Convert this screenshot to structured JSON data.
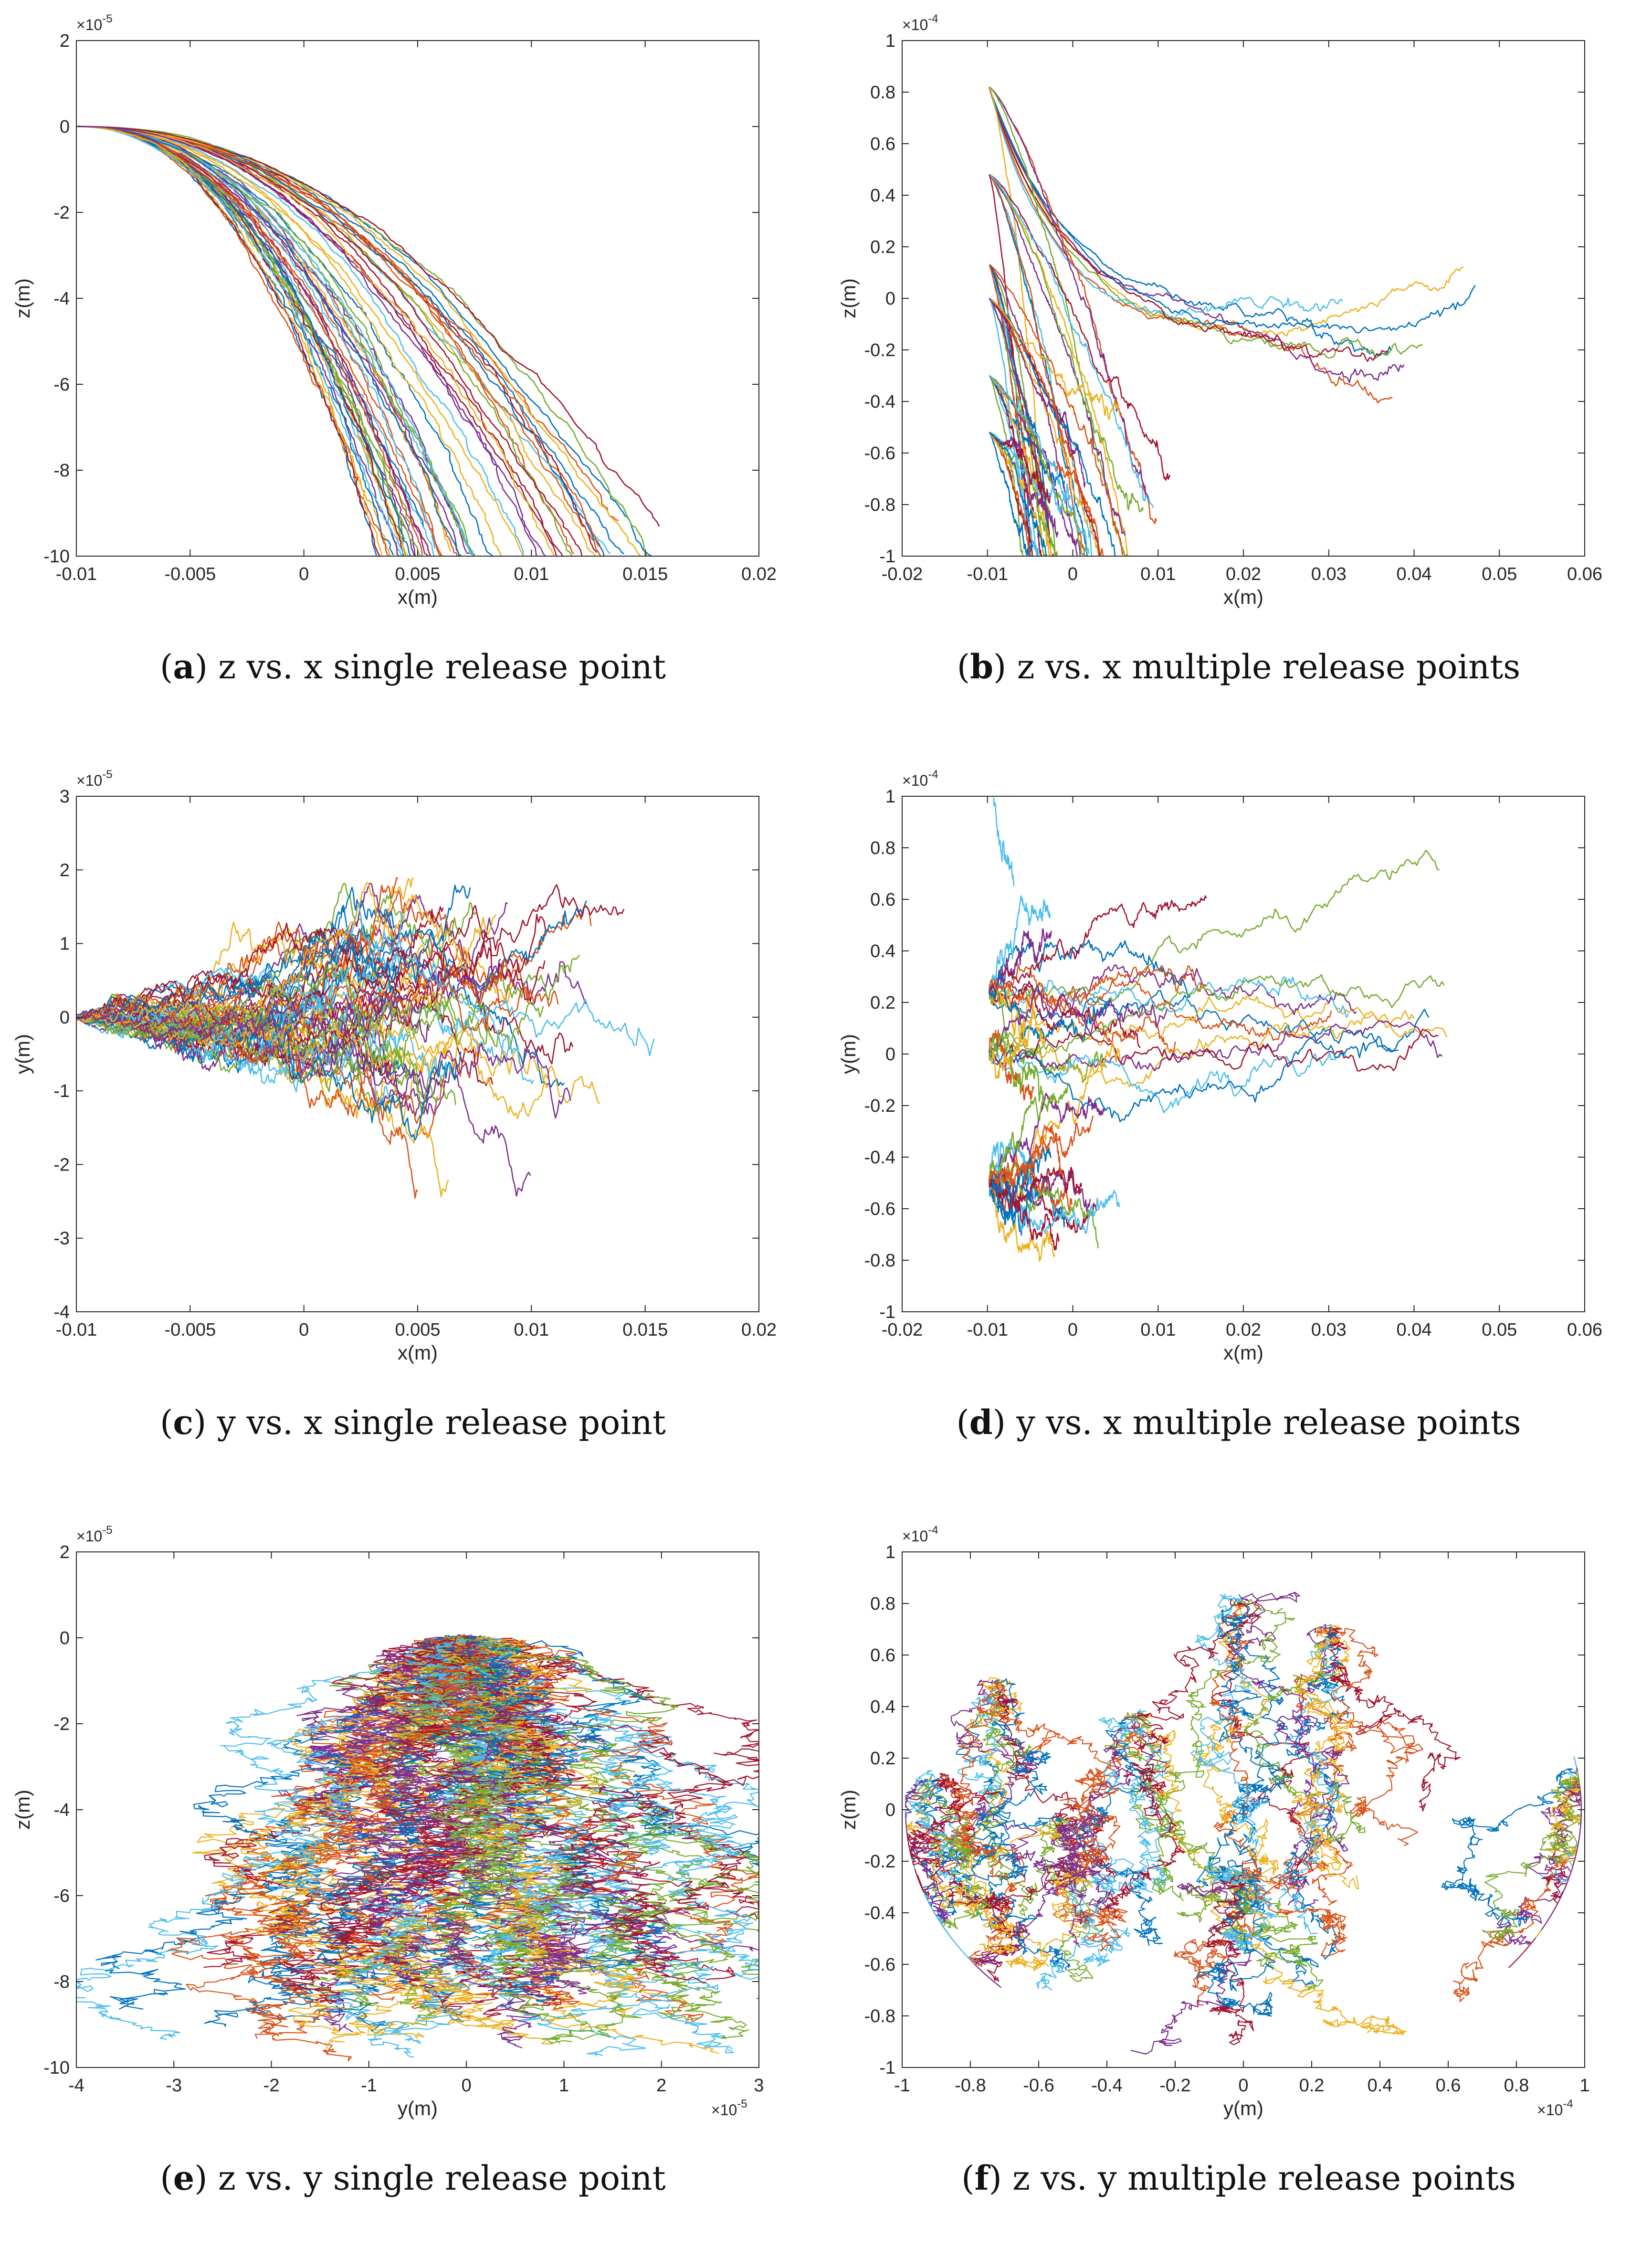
{
  "chart_data": [
    {
      "id": "a",
      "type": "line",
      "caption_label": "a",
      "caption_text": " z vs. x single release point",
      "xlabel": "x(m)",
      "ylabel": "z(m)",
      "xlim": [
        -0.01,
        0.02
      ],
      "ylim": [
        -10,
        2
      ],
      "xticks": [
        -0.01,
        -0.005,
        0,
        0.005,
        0.01,
        0.015,
        0.02
      ],
      "yticks": [
        -10,
        -8,
        -6,
        -4,
        -2,
        0,
        2
      ],
      "xtick_labels": [
        "-0.01",
        "-0.005",
        "0",
        "0.005",
        "0.01",
        "0.015",
        "0.02"
      ],
      "ytick_labels": [
        "-10",
        "-8",
        "-6",
        "-4",
        "-2",
        "0",
        "2"
      ],
      "y_multiplier": "×10",
      "y_multiplier_exp": "-5",
      "x_multiplier": "",
      "x_multiplier_exp": "",
      "mode": "fan_zx",
      "description_series": [
        {
          "name": "single release point trajectories",
          "start": [
            -0.01,
            0
          ],
          "end_x_range": [
            0.004,
            0.0155
          ],
          "end_y": -10
        }
      ]
    },
    {
      "id": "b",
      "type": "line",
      "caption_label": "b",
      "caption_text": " z vs. x multiple release points",
      "xlabel": "x(m)",
      "ylabel": "z(m)",
      "xlim": [
        -0.02,
        0.06
      ],
      "ylim": [
        -1,
        1
      ],
      "xticks": [
        -0.02,
        -0.01,
        0,
        0.01,
        0.02,
        0.03,
        0.04,
        0.05,
        0.06
      ],
      "yticks": [
        -1,
        -0.8,
        -0.6,
        -0.4,
        -0.2,
        0,
        0.2,
        0.4,
        0.6,
        0.8,
        1
      ],
      "xtick_labels": [
        "-0.02",
        "-0.01",
        "0",
        "0.01",
        "0.02",
        "0.03",
        "0.04",
        "0.05",
        "0.06"
      ],
      "ytick_labels": [
        "-1",
        "-0.8",
        "-0.6",
        "-0.4",
        "-0.2",
        "0",
        "0.2",
        "0.4",
        "0.6",
        "0.8",
        "1"
      ],
      "y_multiplier": "×10",
      "y_multiplier_exp": "-4",
      "x_multiplier": "",
      "x_multiplier_exp": "",
      "mode": "multi_zx",
      "release_points_z": [
        0.82,
        0.48,
        0.13,
        0.0,
        -0.3,
        -0.52
      ]
    },
    {
      "id": "c",
      "type": "line",
      "caption_label": "c",
      "caption_text": " y vs. x single release point",
      "xlabel": "x(m)",
      "ylabel": "y(m)",
      "xlim": [
        -0.01,
        0.02
      ],
      "ylim": [
        -4,
        3
      ],
      "xticks": [
        -0.01,
        -0.005,
        0,
        0.005,
        0.01,
        0.015,
        0.02
      ],
      "yticks": [
        -4,
        -3,
        -2,
        -1,
        0,
        1,
        2,
        3
      ],
      "xtick_labels": [
        "-0.01",
        "-0.005",
        "0",
        "0.005",
        "0.01",
        "0.015",
        "0.02"
      ],
      "ytick_labels": [
        "-4",
        "-3",
        "-2",
        "-1",
        "0",
        "1",
        "2",
        "3"
      ],
      "y_multiplier": "×10",
      "y_multiplier_exp": "-5",
      "x_multiplier": "",
      "x_multiplier_exp": "",
      "mode": "fan_yx"
    },
    {
      "id": "d",
      "type": "line",
      "caption_label": "d",
      "caption_text": " y vs. x multiple release points",
      "xlabel": "x(m)",
      "ylabel": "y(m)",
      "xlim": [
        -0.02,
        0.06
      ],
      "ylim": [
        -1,
        1
      ],
      "xticks": [
        -0.02,
        -0.01,
        0,
        0.01,
        0.02,
        0.03,
        0.04,
        0.05,
        0.06
      ],
      "yticks": [
        -1,
        -0.8,
        -0.6,
        -0.4,
        -0.2,
        0,
        0.2,
        0.4,
        0.6,
        0.8,
        1
      ],
      "xtick_labels": [
        "-0.02",
        "-0.01",
        "0",
        "0.01",
        "0.02",
        "0.03",
        "0.04",
        "0.05",
        "0.06"
      ],
      "ytick_labels": [
        "-1",
        "-0.8",
        "-0.6",
        "-0.4",
        "-0.2",
        "0",
        "0.2",
        "0.4",
        "0.6",
        "0.8",
        "1"
      ],
      "y_multiplier": "×10",
      "y_multiplier_exp": "-4",
      "x_multiplier": "",
      "x_multiplier_exp": "",
      "mode": "multi_yx",
      "release_points_y": [
        0.25,
        0.0,
        -0.5
      ]
    },
    {
      "id": "e",
      "type": "line",
      "caption_label": "e",
      "caption_text": " z vs. y single release point",
      "xlabel": "y(m)",
      "ylabel": "z(m)",
      "xlim": [
        -4,
        3
      ],
      "ylim": [
        -10,
        2
      ],
      "xticks": [
        -4,
        -3,
        -2,
        -1,
        0,
        1,
        2,
        3
      ],
      "yticks": [
        -10,
        -8,
        -6,
        -4,
        -2,
        0,
        2
      ],
      "xtick_labels": [
        "-4",
        "-3",
        "-2",
        "-1",
        "0",
        "1",
        "2",
        "3"
      ],
      "ytick_labels": [
        "-10",
        "-8",
        "-6",
        "-4",
        "-2",
        "0",
        "2"
      ],
      "y_multiplier": "×10",
      "y_multiplier_exp": "-5",
      "x_multiplier": "×10",
      "x_multiplier_exp": "-5",
      "mode": "cone_zy"
    },
    {
      "id": "f",
      "type": "line",
      "caption_label": "f",
      "caption_text": " z vs. y multiple release points",
      "xlabel": "y(m)",
      "ylabel": "z(m)",
      "xlim": [
        -1,
        1
      ],
      "ylim": [
        -1,
        1
      ],
      "xticks": [
        -1,
        -0.8,
        -0.6,
        -0.4,
        -0.2,
        0,
        0.2,
        0.4,
        0.6,
        0.8,
        1
      ],
      "yticks": [
        -1,
        -0.8,
        -0.6,
        -0.4,
        -0.2,
        0,
        0.2,
        0.4,
        0.6,
        0.8,
        1
      ],
      "xtick_labels": [
        "-1",
        "-0.8",
        "-0.6",
        "-0.4",
        "-0.2",
        "0",
        "0.2",
        "0.4",
        "0.6",
        "0.8",
        "1"
      ],
      "ytick_labels": [
        "-1",
        "-0.8",
        "-0.6",
        "-0.4",
        "-0.2",
        "0",
        "0.2",
        "0.4",
        "0.6",
        "0.8",
        "1"
      ],
      "y_multiplier": "×10",
      "y_multiplier_exp": "-4",
      "x_multiplier": "×10",
      "x_multiplier_exp": "-4",
      "mode": "multi_zy",
      "release_points": [
        [
          -0.72,
          0.48
        ],
        [
          -0.52,
          -0.05
        ],
        [
          -0.32,
          0.35
        ],
        [
          -0.02,
          0.82
        ],
        [
          0.25,
          0.7
        ],
        [
          0.98,
          0.12
        ],
        [
          -0.9,
          0.1
        ],
        [
          0.0,
          -0.25
        ]
      ]
    }
  ],
  "colors": [
    "#0072BD",
    "#D95319",
    "#EDB120",
    "#7E2F8E",
    "#77AC30",
    "#4DBEEE",
    "#A2142F"
  ]
}
